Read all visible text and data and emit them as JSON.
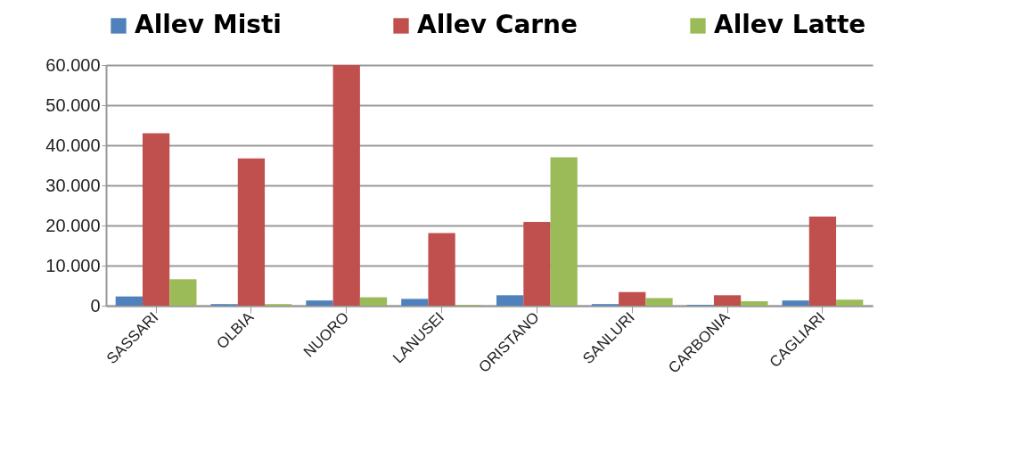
{
  "chart_data": {
    "type": "bar",
    "categories": [
      "SASSARI",
      "OLBIA",
      "NUORO",
      "LANUSEI",
      "ORISTANO",
      "SANLURI",
      "CARBONIA",
      "CAGLIARI"
    ],
    "series": [
      {
        "name": "Allev Misti",
        "color": "#4f81bd",
        "values": [
          2300,
          400,
          1300,
          1700,
          2600,
          400,
          200,
          1300
        ]
      },
      {
        "name": "Allev Carne",
        "color": "#c0504d",
        "values": [
          43000,
          36700,
          60000,
          18100,
          20900,
          3400,
          2600,
          22200
        ]
      },
      {
        "name": "Allev Latte",
        "color": "#9bbb59",
        "values": [
          6600,
          400,
          2100,
          200,
          37000,
          1900,
          1100,
          1500
        ]
      }
    ],
    "ylim": [
      0,
      60000
    ],
    "yticks": [
      {
        "value": 0,
        "label": "0"
      },
      {
        "value": 10000,
        "label": "10.000"
      },
      {
        "value": 20000,
        "label": "20.000"
      },
      {
        "value": 30000,
        "label": "30.000"
      },
      {
        "value": 40000,
        "label": "40.000"
      },
      {
        "value": 50000,
        "label": "50.000"
      },
      {
        "value": 60000,
        "label": "60.000"
      }
    ],
    "grid": "y",
    "legend": "top"
  }
}
